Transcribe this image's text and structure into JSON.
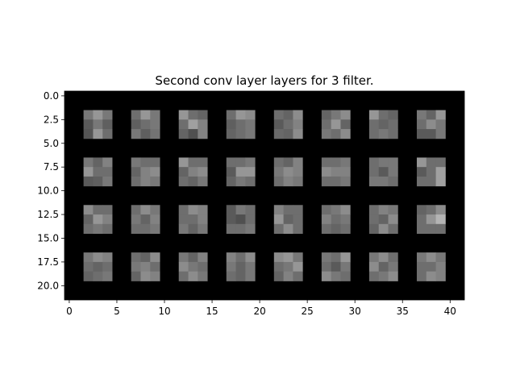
{
  "chart_data": {
    "type": "heatmap",
    "title": "Second conv layer layers for 3 filter.",
    "xlabel": "",
    "ylabel": "",
    "colormap": "gray",
    "xlim": [
      -0.5,
      41.5
    ],
    "ylim": [
      21.5,
      -0.5
    ],
    "x_ticks": [
      0,
      5,
      10,
      15,
      20,
      25,
      30,
      35,
      40
    ],
    "x_tick_labels": [
      "0",
      "5",
      "10",
      "15",
      "20",
      "25",
      "30",
      "35",
      "40"
    ],
    "y_ticks": [
      0,
      2.5,
      5,
      7.5,
      10,
      12.5,
      15,
      17.5,
      20
    ],
    "y_tick_labels": [
      "0.0",
      "2.5",
      "5.0",
      "7.5",
      "10.0",
      "12.5",
      "15.0",
      "17.5",
      "20.0"
    ],
    "grid": false,
    "background_value": 0,
    "tile": {
      "rows": 4,
      "cols": 8,
      "tile_size": 3,
      "first_row": 2,
      "first_col": 2,
      "row_stride": 5,
      "col_stride": 5
    },
    "tiles": [
      [
        [
          120,
          150,
          120
        ],
        [
          90,
          120,
          95
        ],
        [
          85,
          150,
          110
        ]
      ],
      [
        [
          110,
          150,
          120
        ],
        [
          95,
          110,
          120
        ],
        [
          120,
          95,
          115
        ]
      ],
      [
        [
          150,
          110,
          100
        ],
        [
          110,
          160,
          130
        ],
        [
          100,
          80,
          130
        ]
      ],
      [
        [
          110,
          150,
          140
        ],
        [
          95,
          110,
          120
        ],
        [
          100,
          110,
          120
        ]
      ],
      [
        [
          110,
          100,
          140
        ],
        [
          90,
          110,
          130
        ],
        [
          105,
          100,
          140
        ]
      ],
      [
        [
          100,
          120,
          140
        ],
        [
          110,
          150,
          100
        ],
        [
          120,
          110,
          140
        ]
      ],
      [
        [
          150,
          110,
          100
        ],
        [
          110,
          100,
          110
        ],
        [
          110,
          120,
          110
        ]
      ],
      [
        [
          120,
          100,
          150
        ],
        [
          110,
          140,
          120
        ],
        [
          90,
          90,
          120
        ]
      ],
      [
        [
          120,
          100,
          130
        ],
        [
          150,
          110,
          110
        ],
        [
          90,
          95,
          120
        ]
      ],
      [
        [
          120,
          110,
          110
        ],
        [
          100,
          130,
          140
        ],
        [
          110,
          130,
          120
        ]
      ],
      [
        [
          150,
          110,
          110
        ],
        [
          100,
          130,
          140
        ],
        [
          110,
          100,
          120
        ]
      ],
      [
        [
          110,
          110,
          120
        ],
        [
          90,
          150,
          150
        ],
        [
          100,
          120,
          110
        ]
      ],
      [
        [
          110,
          100,
          130
        ],
        [
          120,
          140,
          130
        ],
        [
          110,
          130,
          120
        ]
      ],
      [
        [
          110,
          110,
          120
        ],
        [
          140,
          130,
          130
        ],
        [
          110,
          110,
          120
        ]
      ],
      [
        [
          110,
          120,
          120
        ],
        [
          110,
          90,
          120
        ],
        [
          120,
          120,
          110
        ]
      ],
      [
        [
          150,
          110,
          110
        ],
        [
          90,
          110,
          160
        ],
        [
          110,
          110,
          160
        ]
      ],
      [
        [
          140,
          110,
          110
        ],
        [
          100,
          150,
          130
        ],
        [
          110,
          120,
          110
        ]
      ],
      [
        [
          110,
          140,
          120
        ],
        [
          120,
          100,
          130
        ],
        [
          110,
          110,
          120
        ]
      ],
      [
        [
          110,
          140,
          130
        ],
        [
          110,
          110,
          130
        ],
        [
          120,
          100,
          120
        ]
      ],
      [
        [
          90,
          120,
          110
        ],
        [
          90,
          80,
          110
        ],
        [
          110,
          110,
          120
        ]
      ],
      [
        [
          130,
          110,
          110
        ],
        [
          150,
          100,
          110
        ],
        [
          110,
          140,
          110
        ]
      ],
      [
        [
          110,
          120,
          140
        ],
        [
          130,
          110,
          120
        ],
        [
          110,
          100,
          110
        ]
      ],
      [
        [
          110,
          130,
          120
        ],
        [
          110,
          100,
          140
        ],
        [
          100,
          140,
          110
        ]
      ],
      [
        [
          100,
          110,
          140
        ],
        [
          110,
          150,
          180
        ],
        [
          110,
          110,
          110
        ]
      ],
      [
        [
          120,
          140,
          130
        ],
        [
          110,
          100,
          110
        ],
        [
          100,
          110,
          120
        ]
      ],
      [
        [
          110,
          100,
          140
        ],
        [
          120,
          130,
          110
        ],
        [
          100,
          140,
          130
        ]
      ],
      [
        [
          120,
          100,
          130
        ],
        [
          140,
          120,
          110
        ],
        [
          110,
          140,
          120
        ]
      ],
      [
        [
          130,
          110,
          140
        ],
        [
          120,
          100,
          120
        ],
        [
          110,
          100,
          120
        ]
      ],
      [
        [
          140,
          150,
          120
        ],
        [
          110,
          120,
          150
        ],
        [
          100,
          130,
          110
        ]
      ],
      [
        [
          120,
          110,
          150
        ],
        [
          110,
          90,
          120
        ],
        [
          140,
          120,
          110
        ]
      ],
      [
        [
          120,
          140,
          110
        ],
        [
          140,
          100,
          120
        ],
        [
          110,
          120,
          140
        ]
      ],
      [
        [
          120,
          140,
          120
        ],
        [
          110,
          110,
          130
        ],
        [
          110,
          140,
          130
        ]
      ]
    ]
  }
}
